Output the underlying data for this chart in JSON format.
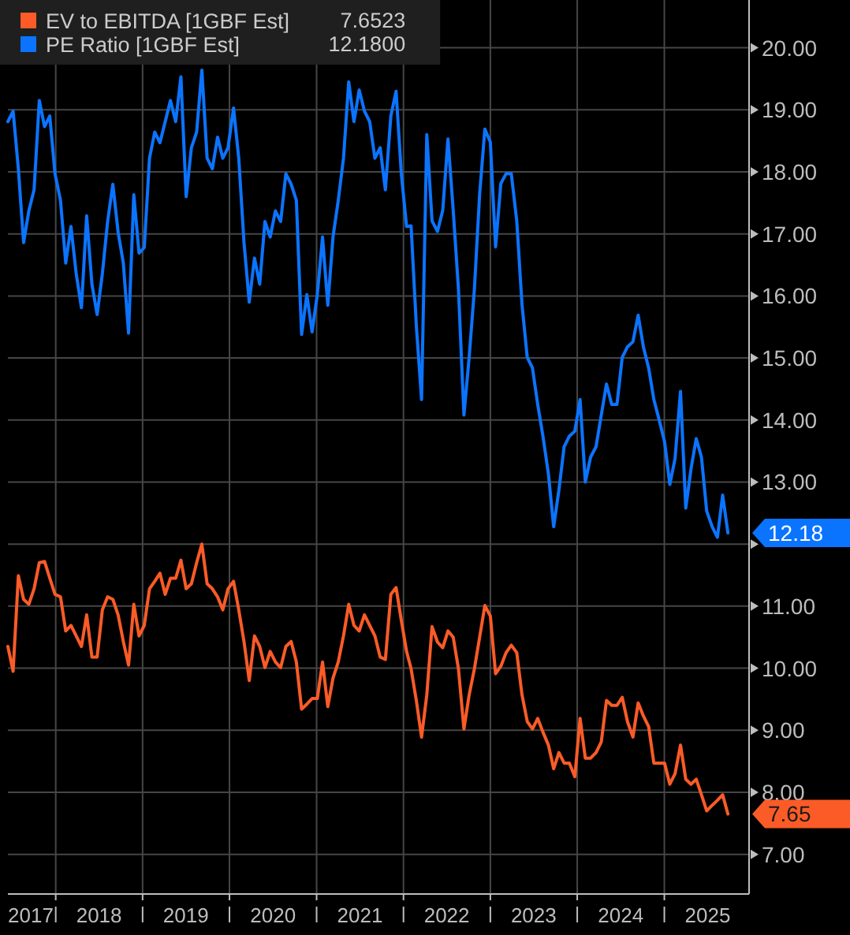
{
  "chart_data": {
    "type": "line",
    "x": [
      "2017-06-14",
      "2017-07-06",
      "2017-07-28",
      "2017-08-19",
      "2017-09-10",
      "2017-10-02",
      "2017-10-24",
      "2017-11-15",
      "2017-12-07",
      "2017-12-29",
      "2018-01-21",
      "2018-02-12",
      "2018-03-06",
      "2018-03-28",
      "2018-04-19",
      "2018-05-11",
      "2018-06-02",
      "2018-06-24",
      "2018-07-16",
      "2018-08-07",
      "2018-08-29",
      "2018-09-20",
      "2018-10-12",
      "2018-11-03",
      "2018-11-25",
      "2018-12-17",
      "2019-01-08",
      "2019-01-30",
      "2019-02-21",
      "2019-03-15",
      "2019-04-06",
      "2019-04-28",
      "2019-05-20",
      "2019-06-11",
      "2019-07-03",
      "2019-07-25",
      "2019-08-16",
      "2019-09-07",
      "2019-09-29",
      "2019-10-21",
      "2019-11-12",
      "2019-12-04",
      "2019-12-26",
      "2020-01-18",
      "2020-02-09",
      "2020-03-02",
      "2020-03-24",
      "2020-04-15",
      "2020-05-07",
      "2020-05-29",
      "2020-06-20",
      "2020-07-12",
      "2020-08-03",
      "2020-08-25",
      "2020-09-16",
      "2020-10-08",
      "2020-10-30",
      "2020-11-21",
      "2020-12-13",
      "2021-01-04",
      "2021-01-26",
      "2021-02-17",
      "2021-03-11",
      "2021-04-02",
      "2021-04-24",
      "2021-05-16",
      "2021-06-07",
      "2021-06-29",
      "2021-07-21",
      "2021-08-12",
      "2021-09-03",
      "2021-09-25",
      "2021-10-17",
      "2021-11-09",
      "2021-12-01",
      "2021-12-23",
      "2022-01-14",
      "2022-02-02",
      "2022-02-24",
      "2022-03-18",
      "2022-04-09",
      "2022-05-01",
      "2022-05-24",
      "2022-06-15",
      "2022-07-07",
      "2022-07-29",
      "2022-08-20",
      "2022-09-12",
      "2022-10-04",
      "2022-10-26",
      "2022-11-17",
      "2022-12-09",
      "2023-01-01",
      "2023-01-23",
      "2023-02-14",
      "2023-03-08",
      "2023-03-30",
      "2023-04-22",
      "2023-05-14",
      "2023-06-05",
      "2023-06-27",
      "2023-07-19",
      "2023-08-10",
      "2023-09-02",
      "2023-09-24",
      "2023-10-16",
      "2023-11-07",
      "2023-11-29",
      "2023-12-22",
      "2024-01-13",
      "2024-02-04",
      "2024-02-26",
      "2024-03-20",
      "2024-04-11",
      "2024-05-03",
      "2024-05-25",
      "2024-06-16",
      "2024-07-08",
      "2024-07-30",
      "2024-08-22",
      "2024-09-13",
      "2024-10-05",
      "2024-10-27",
      "2024-11-18",
      "2024-12-11",
      "2025-01-02",
      "2025-01-24",
      "2025-02-15",
      "2025-03-10",
      "2025-04-01",
      "2025-04-23",
      "2025-05-15",
      "2025-06-06",
      "2025-06-28",
      "2025-07-21",
      "2025-08-12",
      "2025-09-03",
      "2025-09-25"
    ],
    "series": [
      {
        "name": "EV to EBITDA [1GBF Est]",
        "color": "#fa5b27",
        "values": [
          10.35,
          9.95,
          11.49,
          11.11,
          11.03,
          11.28,
          11.7,
          11.72,
          11.45,
          11.19,
          11.15,
          10.6,
          10.69,
          10.52,
          10.35,
          10.86,
          10.18,
          10.18,
          10.94,
          11.15,
          11.11,
          10.86,
          10.43,
          10.05,
          11.03,
          10.52,
          10.69,
          11.28,
          11.4,
          11.53,
          11.19,
          11.45,
          11.45,
          11.74,
          11.28,
          11.36,
          11.7,
          12.0,
          11.36,
          11.28,
          11.15,
          10.94,
          11.28,
          11.4,
          10.94,
          10.43,
          9.8,
          10.52,
          10.35,
          10.01,
          10.27,
          10.1,
          10.01,
          10.35,
          10.43,
          10.1,
          9.34,
          9.42,
          9.51,
          9.51,
          10.1,
          9.38,
          9.84,
          10.1,
          10.52,
          11.03,
          10.69,
          10.6,
          10.86,
          10.69,
          10.52,
          10.18,
          10.14,
          11.19,
          11.3,
          10.77,
          10.27,
          9.99,
          9.48,
          8.89,
          9.57,
          10.67,
          10.42,
          10.33,
          10.6,
          10.5,
          9.99,
          9.02,
          9.57,
          9.99,
          10.5,
          11.01,
          10.84,
          9.91,
          10.03,
          10.25,
          10.37,
          10.25,
          9.57,
          9.14,
          9.02,
          9.19,
          8.97,
          8.76,
          8.38,
          8.64,
          8.47,
          8.47,
          8.25,
          9.19,
          8.55,
          8.55,
          8.64,
          8.81,
          9.48,
          9.4,
          9.4,
          9.53,
          9.14,
          8.89,
          9.44,
          9.23,
          9.06,
          8.47,
          8.47,
          8.47,
          8.13,
          8.3,
          8.76,
          8.21,
          8.13,
          8.21,
          7.96,
          7.7,
          7.79,
          7.87,
          7.96,
          7.65
        ],
        "value_labels": [
          null,
          null,
          null,
          null,
          null,
          null,
          null,
          null,
          null,
          null,
          null,
          null,
          null,
          null,
          null,
          null,
          null,
          null,
          null,
          null,
          null,
          null,
          null,
          null,
          null,
          null,
          null,
          null,
          null,
          null,
          null,
          null,
          null,
          null,
          null,
          null,
          null,
          null,
          null,
          null,
          null,
          null,
          null,
          null,
          null,
          null,
          null,
          null,
          null,
          null,
          null,
          null,
          null,
          null,
          null,
          null,
          null,
          null,
          null,
          null,
          null,
          null,
          null,
          null,
          null,
          null,
          null,
          null,
          null,
          null,
          null,
          null,
          null,
          null,
          null,
          null,
          null,
          null,
          null,
          null,
          null,
          null,
          null,
          null,
          null,
          null,
          null,
          null,
          null,
          null,
          null,
          null,
          null,
          null,
          null,
          null,
          null,
          null,
          null,
          null,
          null,
          null,
          null,
          null,
          null,
          null,
          null,
          null,
          null,
          null,
          null,
          null,
          null,
          null,
          null,
          null,
          null,
          null,
          null,
          null,
          null,
          null,
          null,
          null,
          null,
          null,
          null,
          null,
          null,
          null,
          null,
          null,
          null,
          null,
          null,
          null,
          null,
          "7.65"
        ]
      },
      {
        "name": "PE Ratio [1GBF Est]",
        "color": "#0b74ff",
        "values": [
          18.81,
          18.98,
          18.05,
          16.86,
          17.37,
          17.71,
          19.15,
          18.73,
          18.9,
          17.97,
          17.54,
          16.53,
          17.12,
          16.36,
          15.81,
          17.29,
          16.19,
          15.7,
          16.36,
          17.2,
          17.8,
          17.03,
          16.53,
          15.4,
          17.63,
          16.69,
          16.78,
          18.22,
          18.64,
          18.47,
          18.81,
          19.15,
          18.81,
          19.53,
          17.6,
          18.39,
          18.64,
          19.64,
          18.22,
          18.05,
          18.56,
          18.22,
          18.39,
          19.03,
          18.22,
          16.86,
          15.9,
          16.61,
          16.19,
          17.2,
          16.95,
          17.37,
          17.2,
          17.97,
          17.8,
          17.54,
          15.38,
          16.02,
          15.42,
          16.02,
          16.95,
          15.85,
          16.95,
          17.54,
          18.22,
          19.45,
          18.81,
          19.32,
          18.98,
          18.81,
          18.22,
          18.39,
          17.71,
          18.9,
          19.3,
          17.97,
          17.12,
          17.13,
          15.52,
          14.33,
          18.6,
          17.21,
          17.04,
          17.38,
          18.53,
          17.38,
          16.11,
          14.08,
          15.01,
          16.11,
          17.64,
          18.69,
          18.48,
          16.79,
          17.81,
          17.97,
          17.97,
          17.21,
          15.86,
          15.01,
          14.84,
          14.25,
          13.74,
          13.13,
          12.28,
          12.87,
          13.57,
          13.74,
          13.82,
          14.33,
          13.0,
          13.4,
          13.57,
          14.08,
          14.58,
          14.25,
          14.25,
          15.01,
          15.18,
          15.26,
          15.69,
          15.18,
          14.84,
          14.33,
          13.99,
          13.65,
          12.96,
          13.38,
          14.46,
          12.58,
          13.21,
          13.7,
          13.4,
          12.53,
          12.28,
          12.11,
          12.79,
          12.18
        ],
        "value_labels": [
          null,
          null,
          null,
          null,
          null,
          null,
          null,
          null,
          null,
          null,
          null,
          null,
          null,
          null,
          null,
          null,
          null,
          null,
          null,
          null,
          null,
          null,
          null,
          null,
          null,
          null,
          null,
          null,
          null,
          null,
          null,
          null,
          null,
          null,
          null,
          null,
          null,
          null,
          null,
          null,
          null,
          null,
          null,
          null,
          null,
          null,
          null,
          null,
          null,
          null,
          null,
          null,
          null,
          null,
          null,
          null,
          null,
          null,
          null,
          null,
          null,
          null,
          null,
          null,
          null,
          null,
          null,
          null,
          null,
          null,
          null,
          null,
          null,
          null,
          null,
          null,
          null,
          null,
          null,
          null,
          null,
          null,
          null,
          null,
          null,
          null,
          null,
          null,
          null,
          null,
          null,
          null,
          null,
          null,
          null,
          null,
          null,
          null,
          null,
          null,
          null,
          null,
          null,
          null,
          null,
          null,
          null,
          null,
          null,
          null,
          null,
          null,
          null,
          null,
          null,
          null,
          null,
          null,
          null,
          null,
          null,
          null,
          null,
          null,
          null,
          null,
          null,
          null,
          null,
          null,
          null,
          null,
          null,
          null,
          null,
          null,
          null,
          "12.18"
        ]
      }
    ],
    "annotations": [
      "7.6523",
      "12.1800"
    ],
    "xlim": [
      "2017-06-14",
      "2025-12-23"
    ],
    "xticks": [
      {
        "value": "2017-09-18",
        "label": "2017"
      },
      {
        "value": "2018-01-01",
        "label": null
      },
      {
        "value": "2018-07-02",
        "label": "2018"
      },
      {
        "value": "2019-01-01",
        "label": null
      },
      {
        "value": "2019-07-02",
        "label": "2019"
      },
      {
        "value": "2020-01-01",
        "label": null
      },
      {
        "value": "2020-07-02",
        "label": "2020"
      },
      {
        "value": "2021-01-01",
        "label": null
      },
      {
        "value": "2021-07-02",
        "label": "2021"
      },
      {
        "value": "2022-01-01",
        "label": null
      },
      {
        "value": "2022-07-02",
        "label": "2022"
      },
      {
        "value": "2023-01-01",
        "label": null
      },
      {
        "value": "2023-07-02",
        "label": "2023"
      },
      {
        "value": "2024-01-01",
        "label": null
      },
      {
        "value": "2024-07-02",
        "label": "2024"
      },
      {
        "value": "2025-01-01",
        "label": null
      },
      {
        "value": "2025-07-02",
        "label": "2025"
      }
    ],
    "ylim": [
      6.36,
      20.77
    ],
    "yticks": [
      {
        "value": 7,
        "label": "7.00"
      },
      {
        "value": 8,
        "label": "8.00"
      },
      {
        "value": 9,
        "label": "9.00"
      },
      {
        "value": 10,
        "label": "10.00"
      },
      {
        "value": 11,
        "label": "11.00"
      },
      {
        "value": 12,
        "label": null
      },
      {
        "value": 13,
        "label": "13.00"
      },
      {
        "value": 14,
        "label": "14.00"
      },
      {
        "value": 15,
        "label": "15.00"
      },
      {
        "value": 16,
        "label": "16.00"
      },
      {
        "value": 17,
        "label": "17.00"
      },
      {
        "value": 18,
        "label": "18.00"
      },
      {
        "value": 19,
        "label": "19.00"
      },
      {
        "value": 20,
        "label": "20.00"
      }
    ],
    "grid": true,
    "legend": "top left"
  }
}
